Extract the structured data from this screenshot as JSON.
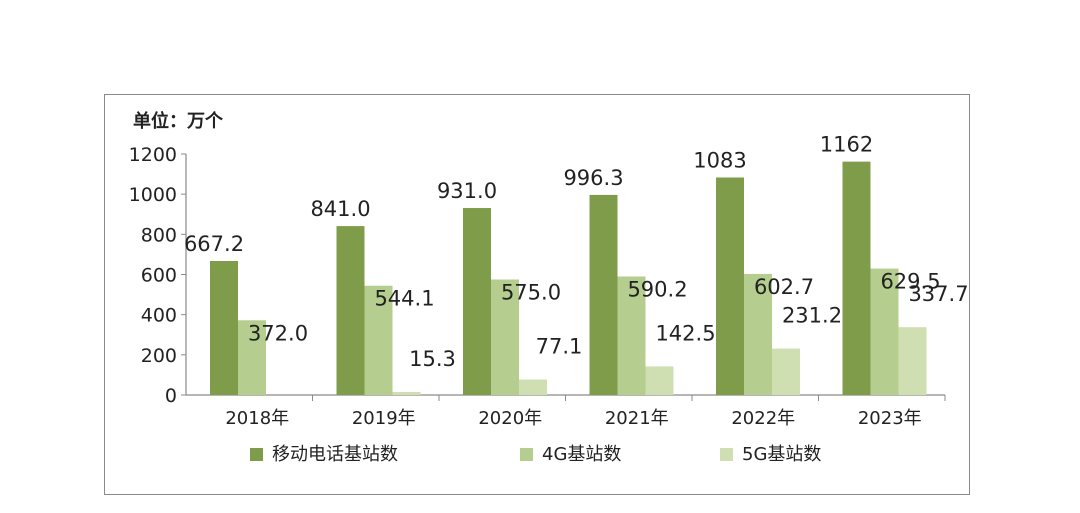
{
  "chart_data": {
    "type": "bar",
    "unit_label": "单位：万个",
    "categories": [
      "2018年",
      "2019年",
      "2020年",
      "2021年",
      "2022年",
      "2023年"
    ],
    "series": [
      {
        "name": "移动电话基站数",
        "color": "#7f9c4a",
        "values": [
          667.2,
          841.0,
          931.0,
          996.3,
          1083,
          1162
        ],
        "labels": [
          "667.2",
          "841.0",
          "931.0",
          "996.3",
          "1083",
          "1162"
        ]
      },
      {
        "name": "4G基站数",
        "color": "#b5cd8e",
        "values": [
          372.0,
          544.1,
          575.0,
          590.2,
          602.7,
          629.5
        ],
        "labels": [
          "372.0",
          "544.1",
          "575.0",
          "590.2",
          "602.7",
          "629.5"
        ]
      },
      {
        "name": "5G基站数",
        "color": "#cfdfb2",
        "values": [
          null,
          15.3,
          77.1,
          142.5,
          231.2,
          337.7
        ],
        "labels": [
          "",
          "15.3",
          "77.1",
          "142.5",
          "231.2",
          "337.7"
        ]
      }
    ],
    "ylim": [
      0,
      1200
    ],
    "yticks": [
      "0",
      "200",
      "400",
      "600",
      "800",
      "1000",
      "1200"
    ],
    "legend_position": "bottom",
    "grid": false,
    "title": "",
    "xlabel": "",
    "ylabel": ""
  }
}
